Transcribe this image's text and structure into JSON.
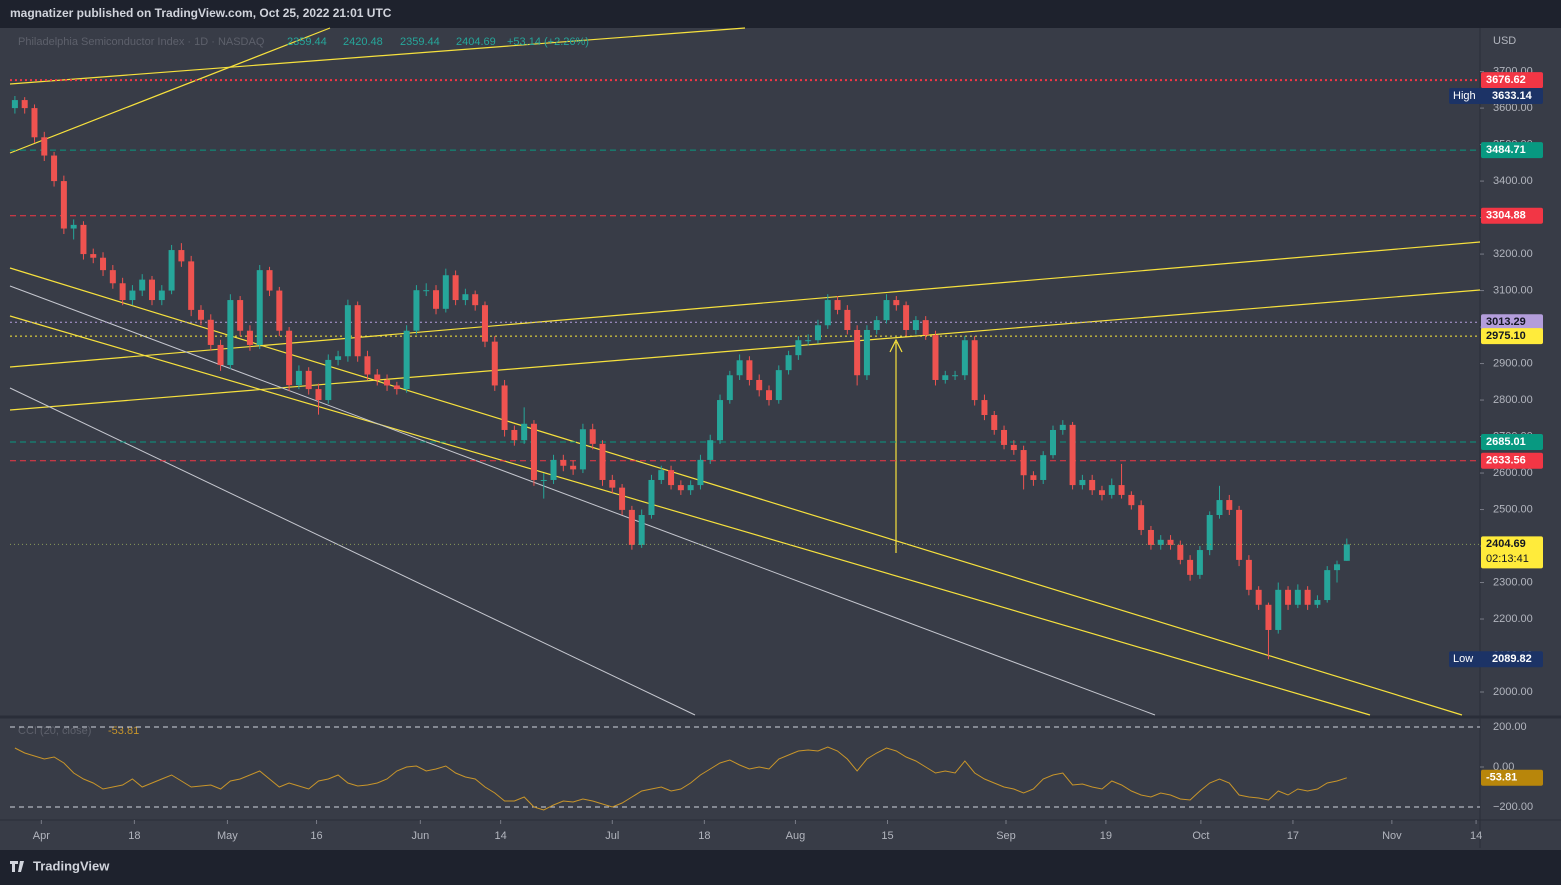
{
  "header": {
    "published": "magnatizer published on TradingView.com, Oct 25, 2022 21:01 UTC"
  },
  "footer": {
    "brand": "TradingView"
  },
  "chart_data": {
    "type": "candlestick",
    "symbol": "Philadelphia Semiconductor Index · 1D · NASDAQ",
    "change": "+53.14 (+2.26%)",
    "currency": "USD",
    "up_color": "#26a69a",
    "down_color": "#ef5350",
    "ylim": [
      1937,
      3814
    ],
    "yticks": [
      {
        "value": 2000,
        "label": "2000.00"
      },
      {
        "value": 2100,
        "label": "2100.00"
      },
      {
        "value": 2200,
        "label": "2200.00"
      },
      {
        "value": 2300,
        "label": "2300.00"
      },
      {
        "value": 2400,
        "label": "2400.00"
      },
      {
        "value": 2500,
        "label": "2500.00"
      },
      {
        "value": 2600,
        "label": "2600.00"
      },
      {
        "value": 2700,
        "label": "2700.00"
      },
      {
        "value": 2800,
        "label": "2800.00"
      },
      {
        "value": 2900,
        "label": "2900.00"
      },
      {
        "value": 3000,
        "label": "3000.00"
      },
      {
        "value": 3100,
        "label": "3100.00"
      },
      {
        "value": 3200,
        "label": "3200.00"
      },
      {
        "value": 3300,
        "label": "3300.00"
      },
      {
        "value": 3400,
        "label": "3400.00"
      },
      {
        "value": 3500,
        "label": "3500.00"
      },
      {
        "value": 3600,
        "label": "3600.00"
      },
      {
        "value": 3700,
        "label": "3700.00"
      }
    ],
    "xlim": [
      -0.5,
      149.6
    ],
    "xticks": [
      {
        "value": 2.7,
        "label": "Apr"
      },
      {
        "value": 12.2,
        "label": "18"
      },
      {
        "value": 21.7,
        "label": "May"
      },
      {
        "value": 30.8,
        "label": "16"
      },
      {
        "value": 41.4,
        "label": "Jun"
      },
      {
        "value": 49.6,
        "label": "14"
      },
      {
        "value": 61,
        "label": "Jul"
      },
      {
        "value": 70.4,
        "label": "18"
      },
      {
        "value": 79.7,
        "label": "Aug"
      },
      {
        "value": 89.1,
        "label": "15"
      },
      {
        "value": 101.2,
        "label": "Sep"
      },
      {
        "value": 111.4,
        "label": "19"
      },
      {
        "value": 121.1,
        "label": "Oct"
      },
      {
        "value": 130.5,
        "label": "17"
      },
      {
        "value": 140.6,
        "label": "Nov"
      },
      {
        "value": 149.2,
        "label": "14"
      }
    ],
    "high_label": "High",
    "low_label": "Low",
    "price_lines": [
      {
        "value": 3676.62,
        "color": "#f23645",
        "style": "dotted"
      },
      {
        "value": 3484.71,
        "color": "#089981",
        "style": "dashed"
      },
      {
        "value": 3304.88,
        "color": "#f23645",
        "style": "dashed"
      },
      {
        "value": 3013.29,
        "color": "#b39ddb",
        "style": "dotted"
      },
      {
        "value": 2975.1,
        "label": "2975.10",
        "color": "#ffeb3b",
        "style": "dotted"
      },
      {
        "value": 2685.01,
        "color": "#089981",
        "style": "dashed"
      },
      {
        "value": 2633.56,
        "color": "#f23645",
        "style": "dashed"
      }
    ],
    "last_color": "#ffeb3b",
    "countdown": "02:13:41",
    "values": [
      [
        3600,
        3633.14,
        3585,
        3622
      ],
      [
        3622,
        3630,
        3585,
        3600
      ],
      [
        3600,
        3610,
        3505,
        3520
      ],
      [
        3520,
        3535,
        3455,
        3470
      ],
      [
        3470,
        3480,
        3385,
        3400
      ],
      [
        3400,
        3415,
        3255,
        3270
      ],
      [
        3270,
        3295,
        3240,
        3280
      ],
      [
        3280,
        3290,
        3185,
        3200
      ],
      [
        3200,
        3215,
        3175,
        3190
      ],
      [
        3190,
        3205,
        3140,
        3156
      ],
      [
        3156,
        3170,
        3105,
        3120
      ],
      [
        3120,
        3135,
        3060,
        3074
      ],
      [
        3074,
        3115,
        3060,
        3100
      ],
      [
        3100,
        3145,
        3085,
        3130
      ],
      [
        3130,
        3140,
        3060,
        3074
      ],
      [
        3074,
        3115,
        3060,
        3100
      ],
      [
        3100,
        3225,
        3090,
        3211
      ],
      [
        3211,
        3230,
        3165,
        3180
      ],
      [
        3180,
        3195,
        3030,
        3047
      ],
      [
        3047,
        3060,
        3005,
        3020
      ],
      [
        3020,
        3035,
        2935,
        2951
      ],
      [
        2951,
        2965,
        2880,
        2896
      ],
      [
        2896,
        3090,
        2885,
        3074
      ],
      [
        3074,
        3085,
        2975,
        2990
      ],
      [
        2990,
        3005,
        2935,
        2951
      ],
      [
        2951,
        3170,
        2940,
        3156
      ],
      [
        3156,
        3165,
        3085,
        3100
      ],
      [
        3100,
        3110,
        2975,
        2990
      ],
      [
        2990,
        3000,
        2825,
        2841
      ],
      [
        2841,
        2895,
        2830,
        2880
      ],
      [
        2880,
        2890,
        2815,
        2830
      ],
      [
        2830,
        2845,
        2760,
        2800
      ],
      [
        2800,
        2925,
        2790,
        2910
      ],
      [
        2910,
        2935,
        2895,
        2920
      ],
      [
        2920,
        3075,
        2905,
        3060
      ],
      [
        3060,
        3070,
        2905,
        2920
      ],
      [
        2920,
        2935,
        2855,
        2870
      ],
      [
        2870,
        2885,
        2840,
        2855
      ],
      [
        2855,
        2870,
        2825,
        2840
      ],
      [
        2840,
        2850,
        2815,
        2830
      ],
      [
        2830,
        3005,
        2820,
        2990
      ],
      [
        2990,
        3115,
        2980,
        3101
      ],
      [
        3101,
        3120,
        3085,
        3101
      ],
      [
        3101,
        3115,
        3035,
        3050
      ],
      [
        3050,
        3160,
        3040,
        3142
      ],
      [
        3142,
        3155,
        3060,
        3074
      ],
      [
        3074,
        3105,
        3060,
        3090
      ],
      [
        3090,
        3100,
        3045,
        3060
      ],
      [
        3060,
        3070,
        2945,
        2960
      ],
      [
        2960,
        2975,
        2825,
        2840
      ],
      [
        2840,
        2855,
        2700,
        2718
      ],
      [
        2718,
        2730,
        2675,
        2690
      ],
      [
        2690,
        2780,
        2680,
        2735
      ],
      [
        2735,
        2745,
        2565,
        2581
      ],
      [
        2581,
        2600,
        2530,
        2581
      ],
      [
        2581,
        2650,
        2570,
        2636
      ],
      [
        2636,
        2650,
        2605,
        2620
      ],
      [
        2620,
        2635,
        2595,
        2610
      ],
      [
        2610,
        2735,
        2600,
        2720
      ],
      [
        2720,
        2735,
        2665,
        2680
      ],
      [
        2680,
        2690,
        2565,
        2581
      ],
      [
        2581,
        2595,
        2545,
        2560
      ],
      [
        2560,
        2570,
        2485,
        2499
      ],
      [
        2499,
        2510,
        2390,
        2403
      ],
      [
        2403,
        2500,
        2395,
        2485
      ],
      [
        2485,
        2595,
        2475,
        2581
      ],
      [
        2581,
        2620,
        2570,
        2608
      ],
      [
        2608,
        2620,
        2555,
        2567
      ],
      [
        2567,
        2580,
        2540,
        2553
      ],
      [
        2553,
        2580,
        2540,
        2567
      ],
      [
        2567,
        2650,
        2555,
        2636
      ],
      [
        2636,
        2705,
        2625,
        2690
      ],
      [
        2690,
        2815,
        2680,
        2800
      ],
      [
        2800,
        2880,
        2790,
        2868
      ],
      [
        2868,
        2925,
        2855,
        2909
      ],
      [
        2909,
        2920,
        2840,
        2855
      ],
      [
        2855,
        2870,
        2810,
        2827
      ],
      [
        2827,
        2840,
        2785,
        2800
      ],
      [
        2800,
        2895,
        2790,
        2882
      ],
      [
        2882,
        2935,
        2870,
        2923
      ],
      [
        2923,
        2975,
        2910,
        2964
      ],
      [
        2964,
        2980,
        2950,
        2964
      ],
      [
        2964,
        3020,
        2955,
        3005
      ],
      [
        3005,
        3090,
        2995,
        3074
      ],
      [
        3074,
        3085,
        3035,
        3047
      ],
      [
        3047,
        3060,
        2980,
        2992
      ],
      [
        2992,
        3005,
        2840,
        2868
      ],
      [
        2868,
        3005,
        2855,
        2992
      ],
      [
        2992,
        3030,
        2980,
        3019
      ],
      [
        3019,
        3090,
        3010,
        3074
      ],
      [
        3074,
        3085,
        3045,
        3060
      ],
      [
        3060,
        3070,
        2975,
        2992
      ],
      [
        2992,
        3030,
        2980,
        3019
      ],
      [
        3019,
        3030,
        2965,
        2978
      ],
      [
        2978,
        2990,
        2840,
        2855
      ],
      [
        2855,
        2880,
        2845,
        2868
      ],
      [
        2868,
        2880,
        2855,
        2868
      ],
      [
        2868,
        2975,
        2855,
        2964
      ],
      [
        2964,
        2975,
        2785,
        2800
      ],
      [
        2800,
        2815,
        2745,
        2759
      ],
      [
        2759,
        2770,
        2705,
        2718
      ],
      [
        2718,
        2730,
        2665,
        2677
      ],
      [
        2677,
        2690,
        2650,
        2663
      ],
      [
        2663,
        2675,
        2555,
        2594
      ],
      [
        2594,
        2605,
        2565,
        2581
      ],
      [
        2581,
        2660,
        2570,
        2649
      ],
      [
        2649,
        2730,
        2640,
        2718
      ],
      [
        2718,
        2745,
        2705,
        2732
      ],
      [
        2732,
        2740,
        2555,
        2567
      ],
      [
        2567,
        2595,
        2555,
        2581
      ],
      [
        2581,
        2595,
        2540,
        2553
      ],
      [
        2553,
        2565,
        2525,
        2540
      ],
      [
        2540,
        2585,
        2530,
        2567
      ],
      [
        2567,
        2625,
        2530,
        2540
      ],
      [
        2540,
        2550,
        2500,
        2512
      ],
      [
        2512,
        2525,
        2430,
        2444
      ],
      [
        2444,
        2455,
        2390,
        2403
      ],
      [
        2403,
        2430,
        2390,
        2417
      ],
      [
        2417,
        2430,
        2390,
        2403
      ],
      [
        2403,
        2415,
        2350,
        2362
      ],
      [
        2362,
        2375,
        2305,
        2321
      ],
      [
        2321,
        2400,
        2310,
        2389
      ],
      [
        2389,
        2495,
        2375,
        2485
      ],
      [
        2485,
        2565,
        2475,
        2526
      ],
      [
        2526,
        2540,
        2485,
        2499
      ],
      [
        2499,
        2510,
        2345,
        2362
      ],
      [
        2362,
        2375,
        2265,
        2280
      ],
      [
        2280,
        2290,
        2225,
        2239
      ],
      [
        2239,
        2245,
        2089.82,
        2170
      ],
      [
        2170,
        2300,
        2160,
        2280
      ],
      [
        2280,
        2290,
        2225,
        2239
      ],
      [
        2239,
        2295,
        2230,
        2280
      ],
      [
        2280,
        2290,
        2225,
        2239
      ],
      [
        2239,
        2265,
        2230,
        2252
      ],
      [
        2252,
        2345,
        2245,
        2334
      ],
      [
        2334,
        2360,
        2300,
        2350
      ],
      [
        2359.44,
        2420.48,
        2359.44,
        2404.69
      ]
    ],
    "cci": {
      "title": "CCI (20, close)",
      "color": "#c8952a",
      "ylim": [
        -265,
        245
      ],
      "yticks": [
        {
          "value": 200,
          "label": "200.00"
        },
        {
          "value": 0,
          "label": "0.00"
        },
        {
          "value": -200,
          "label": "−200.00"
        }
      ],
      "values": [
        95,
        70,
        55,
        40,
        50,
        20,
        -30,
        -60,
        -80,
        -110,
        -100,
        -90,
        -60,
        -100,
        -80,
        -60,
        -40,
        -70,
        -100,
        -95,
        -90,
        -110,
        -70,
        -60,
        -40,
        -20,
        -60,
        -100,
        -80,
        -95,
        -110,
        -70,
        -60,
        -40,
        -80,
        -95,
        -90,
        -80,
        -60,
        -20,
        0,
        5,
        -20,
        -10,
        5,
        -30,
        -50,
        -60,
        -100,
        -130,
        -170,
        -170,
        -150,
        -200,
        -215,
        -190,
        -170,
        -175,
        -160,
        -170,
        -185,
        -200,
        -180,
        -150,
        -120,
        -110,
        -100,
        -120,
        -110,
        -80,
        -40,
        -10,
        20,
        35,
        10,
        -10,
        0,
        -10,
        40,
        60,
        80,
        85,
        80,
        100,
        80,
        40,
        -20,
        40,
        70,
        95,
        80,
        50,
        30,
        0,
        -30,
        -20,
        -30,
        30,
        -30,
        -60,
        -80,
        -100,
        -110,
        -130,
        -110,
        -60,
        -40,
        -30,
        -90,
        -85,
        -100,
        -110,
        -70,
        -90,
        -120,
        -140,
        -150,
        -130,
        -140,
        -160,
        -165,
        -120,
        -80,
        -60,
        -80,
        -140,
        -150,
        -155,
        -165,
        -120,
        -140,
        -110,
        -120,
        -110,
        -80,
        -70,
        -53.81
      ]
    }
  }
}
